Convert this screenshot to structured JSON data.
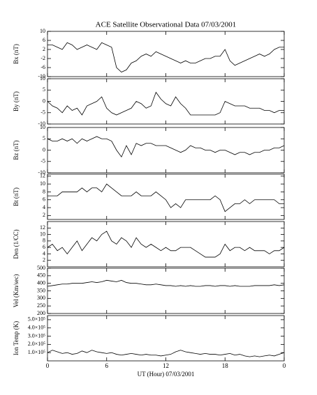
{
  "chart_data": [
    {
      "type": "line",
      "title": "ACE Satellite Observational Data   07/03/2001",
      "ylabel": "Bx (nT)",
      "color": "#000000",
      "x": [
        0,
        0.5,
        1,
        1.5,
        2,
        2.5,
        3,
        3.5,
        4,
        4.5,
        5,
        5.5,
        6,
        6.5,
        7,
        7.5,
        8,
        8.5,
        9,
        9.5,
        10,
        10.5,
        11,
        11.5,
        12,
        12.5,
        13,
        13.5,
        14,
        14.5,
        15,
        15.5,
        16,
        16.5,
        17,
        17.5,
        18,
        18.5,
        19,
        19.5,
        20,
        20.5,
        21,
        21.5,
        22,
        22.5,
        23,
        23.5,
        24
      ],
      "values": [
        4,
        4,
        3,
        2,
        5,
        4,
        2,
        3,
        4,
        3,
        2,
        5,
        4,
        3,
        -6,
        -8,
        -7,
        -4,
        -3,
        -1,
        0,
        -1,
        1,
        0,
        -1,
        -2,
        -3,
        -4,
        -3,
        -4,
        -4,
        -3,
        -2,
        -2,
        -1,
        -1,
        2,
        -3,
        -5,
        -4,
        -3,
        -2,
        -1,
        0,
        -1,
        0,
        2,
        3,
        3
      ],
      "xlim": [
        0,
        24
      ],
      "xticks": [
        0,
        6,
        12,
        18,
        24
      ],
      "ylim": [
        -10,
        10
      ],
      "yticks": [
        -10,
        -6,
        -2,
        2,
        6,
        10
      ]
    },
    {
      "type": "line",
      "ylabel": "By (nT)",
      "color": "#000000",
      "x": [
        0,
        0.5,
        1,
        1.5,
        2,
        2.5,
        3,
        3.5,
        4,
        4.5,
        5,
        5.5,
        6,
        6.5,
        7,
        7.5,
        8,
        8.5,
        9,
        9.5,
        10,
        10.5,
        11,
        11.5,
        12,
        12.5,
        13,
        13.5,
        14,
        14.5,
        15,
        15.5,
        16,
        16.5,
        17,
        17.5,
        18,
        18.5,
        19,
        19.5,
        20,
        20.5,
        21,
        21.5,
        22,
        22.5,
        23,
        23.5,
        24
      ],
      "values": [
        0,
        -2,
        -3,
        -5,
        -2,
        -4,
        -3,
        -6,
        -2,
        -1,
        0,
        2,
        -3,
        -5,
        -6,
        -5,
        -4,
        -3,
        0,
        -1,
        -3,
        -2,
        4,
        1,
        -1,
        -2,
        2,
        -1,
        -3,
        -6,
        -6,
        -6,
        -6,
        -6,
        -6,
        -5,
        0,
        -1,
        -2,
        -2,
        -2,
        -3,
        -3,
        -3,
        -4,
        -4,
        -5,
        -4,
        -4
      ],
      "xlim": [
        0,
        24
      ],
      "xticks": [
        0,
        6,
        12,
        18,
        24
      ],
      "ylim": [
        -10,
        10
      ],
      "yticks": [
        -10,
        -5,
        0,
        5,
        10
      ]
    },
    {
      "type": "line",
      "ylabel": "Bz (nT)",
      "color": "#000000",
      "x": [
        0,
        0.5,
        1,
        1.5,
        2,
        2.5,
        3,
        3.5,
        4,
        4.5,
        5,
        5.5,
        6,
        6.5,
        7,
        7.5,
        8,
        8.5,
        9,
        9.5,
        10,
        10.5,
        11,
        11.5,
        12,
        12.5,
        13,
        13.5,
        14,
        14.5,
        15,
        15.5,
        16,
        16.5,
        17,
        17.5,
        18,
        18.5,
        19,
        19.5,
        20,
        20.5,
        21,
        21.5,
        22,
        22.5,
        23,
        23.5,
        24
      ],
      "values": [
        5,
        4,
        4,
        5,
        4,
        5,
        3,
        5,
        4,
        5,
        6,
        5,
        5,
        4,
        0,
        -3,
        2,
        -2,
        3,
        2,
        3,
        3,
        2,
        2,
        2,
        1,
        0,
        -1,
        0,
        2,
        1,
        1,
        0,
        0,
        -1,
        0,
        0,
        -1,
        -2,
        -1,
        -1,
        -2,
        -1,
        -1,
        0,
        0,
        1,
        1,
        2
      ],
      "xlim": [
        0,
        24
      ],
      "xticks": [
        0,
        6,
        12,
        18,
        24
      ],
      "ylim": [
        -10,
        10
      ],
      "yticks": [
        -10,
        -5,
        0,
        5,
        10
      ]
    },
    {
      "type": "line",
      "ylabel": "Bt (nT)",
      "color": "#000000",
      "x": [
        0,
        0.5,
        1,
        1.5,
        2,
        2.5,
        3,
        3.5,
        4,
        4.5,
        5,
        5.5,
        6,
        6.5,
        7,
        7.5,
        8,
        8.5,
        9,
        9.5,
        10,
        10.5,
        11,
        11.5,
        12,
        12.5,
        13,
        13.5,
        14,
        14.5,
        15,
        15.5,
        16,
        16.5,
        17,
        17.5,
        18,
        18.5,
        19,
        19.5,
        20,
        20.5,
        21,
        21.5,
        22,
        22.5,
        23,
        23.5,
        24
      ],
      "values": [
        7,
        7,
        7,
        8,
        8,
        8,
        8,
        9,
        8,
        9,
        9,
        8,
        10,
        9,
        8,
        7,
        7,
        7,
        8,
        7,
        7,
        7,
        8,
        7,
        6,
        4,
        5,
        4,
        6,
        6,
        6,
        6,
        6,
        6,
        7,
        6,
        3,
        4,
        5,
        5,
        6,
        5,
        6,
        6,
        6,
        6,
        6,
        5,
        5
      ],
      "xlim": [
        0,
        24
      ],
      "xticks": [
        0,
        6,
        12,
        18,
        24
      ],
      "ylim": [
        1,
        12.5
      ],
      "yticks": [
        2,
        4,
        6,
        8,
        10,
        12
      ]
    },
    {
      "type": "line",
      "ylabel": "Den (1/CC)",
      "color": "#000000",
      "x": [
        0,
        0.5,
        1,
        1.5,
        2,
        2.5,
        3,
        3.5,
        4,
        4.5,
        5,
        5.5,
        6,
        6.5,
        7,
        7.5,
        8,
        8.5,
        9,
        9.5,
        10,
        10.5,
        11,
        11.5,
        12,
        12.5,
        13,
        13.5,
        14,
        14.5,
        15,
        15.5,
        16,
        16.5,
        17,
        17.5,
        18,
        18.5,
        19,
        19.5,
        20,
        20.5,
        21,
        21.5,
        22,
        22.5,
        23,
        23.5,
        24
      ],
      "values": [
        6,
        7,
        5,
        6,
        4,
        6,
        8,
        5,
        7,
        9,
        8,
        10,
        11,
        8,
        7,
        9,
        8,
        6,
        9,
        7,
        6,
        7,
        6,
        5,
        6,
        5,
        5,
        6,
        6,
        6,
        5,
        4,
        3,
        3,
        3,
        4,
        7,
        5,
        6,
        6,
        5,
        6,
        5,
        5,
        5,
        4,
        5,
        5,
        6
      ],
      "xlim": [
        0,
        24
      ],
      "xticks": [
        0,
        6,
        12,
        18,
        24
      ],
      "ylim": [
        0,
        14
      ],
      "yticks": [
        2,
        4,
        6,
        8,
        10,
        12
      ]
    },
    {
      "type": "line",
      "ylabel": "Vel (Km/sec)",
      "color": "#000000",
      "x": [
        0,
        0.5,
        1,
        1.5,
        2,
        2.5,
        3,
        3.5,
        4,
        4.5,
        5,
        5.5,
        6,
        6.5,
        7,
        7.5,
        8,
        8.5,
        9,
        9.5,
        10,
        10.5,
        11,
        11.5,
        12,
        12.5,
        13,
        13.5,
        14,
        14.5,
        15,
        15.5,
        16,
        16.5,
        17,
        17.5,
        18,
        18.5,
        19,
        19.5,
        20,
        20.5,
        21,
        21.5,
        22,
        22.5,
        23,
        23.5,
        24
      ],
      "values": [
        380,
        385,
        390,
        395,
        395,
        400,
        400,
        400,
        405,
        410,
        405,
        410,
        420,
        415,
        410,
        420,
        405,
        400,
        400,
        395,
        390,
        390,
        395,
        390,
        385,
        385,
        380,
        385,
        380,
        385,
        380,
        380,
        385,
        385,
        380,
        385,
        385,
        380,
        385,
        380,
        380,
        380,
        385,
        385,
        385,
        385,
        390,
        385,
        390
      ],
      "xlim": [
        0,
        24
      ],
      "xticks": [
        0,
        6,
        12,
        18,
        24
      ],
      "ylim": [
        200,
        500
      ],
      "yticks": [
        200,
        250,
        300,
        350,
        400,
        450,
        500
      ]
    },
    {
      "type": "line",
      "ylabel": "Ion Temp (K)",
      "xlabel": "UT (Hour)   07/03/2001",
      "color": "#000000",
      "x": [
        0,
        0.5,
        1,
        1.5,
        2,
        2.5,
        3,
        3.5,
        4,
        4.5,
        5,
        5.5,
        6,
        6.5,
        7,
        7.5,
        8,
        8.5,
        9,
        9.5,
        10,
        10.5,
        11,
        11.5,
        12,
        12.5,
        13,
        13.5,
        14,
        14.5,
        15,
        15.5,
        16,
        16.5,
        17,
        17.5,
        18,
        18.5,
        19,
        19.5,
        20,
        20.5,
        21,
        21.5,
        22,
        22.5,
        23,
        23.5,
        24
      ],
      "values": [
        100000,
        130000,
        110000,
        90000,
        100000,
        80000,
        90000,
        120000,
        100000,
        130000,
        110000,
        100000,
        90000,
        100000,
        80000,
        70000,
        80000,
        90000,
        80000,
        70000,
        80000,
        70000,
        70000,
        60000,
        70000,
        80000,
        110000,
        130000,
        110000,
        100000,
        90000,
        80000,
        90000,
        80000,
        80000,
        70000,
        80000,
        90000,
        70000,
        80000,
        60000,
        50000,
        60000,
        50000,
        60000,
        70000,
        60000,
        80000,
        100000
      ],
      "xlim": [
        0,
        24
      ],
      "xticks": [
        0,
        6,
        12,
        {
          "value": 18,
          "label": "18"
        },
        {
          "value": 24,
          "label": "0"
        }
      ],
      "ylim": [
        0,
        550000
      ],
      "yticks": [
        {
          "value": 100000,
          "label": "1.0×10⁵"
        },
        {
          "value": 200000,
          "label": "2.0×10⁵"
        },
        {
          "value": 300000,
          "label": "3.0×10⁵"
        },
        {
          "value": 400000,
          "label": "4.0×10⁵"
        },
        {
          "value": 500000,
          "label": "5.0×10⁵"
        }
      ]
    }
  ]
}
